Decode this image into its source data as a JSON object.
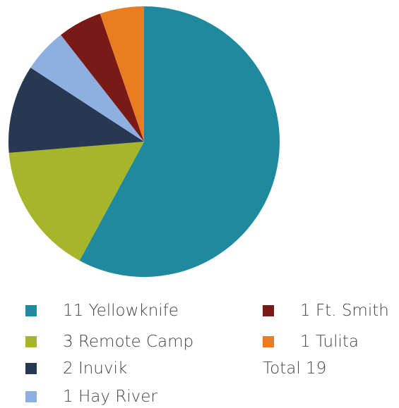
{
  "chart_data": {
    "type": "pie",
    "start_angle_deg": 0,
    "direction": "clockwise",
    "slices": [
      {
        "label": "11 Yellowknife",
        "value": 11,
        "color": "#1f8a9e"
      },
      {
        "label": "3 Remote Camp",
        "value": 3,
        "color": "#a6b529"
      },
      {
        "label": "2 Inuvik",
        "value": 2,
        "color": "#283853"
      },
      {
        "label": "1 Hay River",
        "value": 1,
        "color": "#8db0e0"
      },
      {
        "label": "1 Ft. Smith",
        "value": 1,
        "color": "#7a1a16"
      },
      {
        "label": "1 Tulita",
        "value": 1,
        "color": "#ea7d22"
      }
    ],
    "total_label": "Total 19",
    "legend_position": "bottom"
  }
}
